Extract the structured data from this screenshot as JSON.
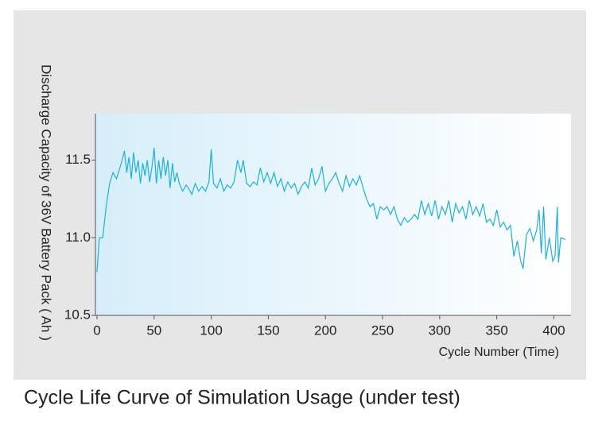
{
  "chart_data": {
    "type": "line",
    "title": "Cycle Life Curve of Simulation Usage (under test)",
    "x_label": "Cycle Number (Time)",
    "y_label": "Discharge Capacity of 36V Battery Pack ( Ah )",
    "color": "#1fb0da",
    "xlim": [
      0,
      415
    ],
    "xticks": [
      0,
      50,
      100,
      150,
      200,
      250,
      300,
      350,
      400
    ],
    "ylim": [
      10.5,
      11.8
    ],
    "yticks": [
      10.5,
      {
        "value": 11,
        "label": "11.0"
      },
      11.5
    ],
    "x": [
      0,
      2,
      5,
      8,
      11,
      14,
      17,
      20,
      22,
      24,
      26,
      28,
      30,
      32,
      34,
      36,
      38,
      40,
      42,
      44,
      46,
      48,
      50,
      52,
      54,
      56,
      58,
      60,
      62,
      64,
      66,
      68,
      70,
      72,
      75,
      78,
      80,
      83,
      86,
      89,
      92,
      95,
      98,
      100,
      102,
      105,
      108,
      111,
      114,
      117,
      120,
      123,
      126,
      128,
      131,
      134,
      137,
      140,
      143,
      146,
      149,
      152,
      155,
      158,
      161,
      164,
      167,
      170,
      173,
      176,
      179,
      182,
      185,
      188,
      191,
      194,
      197,
      200,
      203,
      206,
      209,
      212,
      215,
      218,
      221,
      224,
      227,
      230,
      233,
      236,
      239,
      242,
      245,
      248,
      251,
      254,
      257,
      260,
      263,
      266,
      269,
      272,
      275,
      278,
      281,
      284,
      287,
      290,
      293,
      296,
      299,
      302,
      305,
      308,
      311,
      314,
      317,
      320,
      323,
      326,
      329,
      332,
      335,
      338,
      341,
      344,
      347,
      350,
      353,
      356,
      359,
      362,
      365,
      368,
      371,
      373,
      376,
      379,
      382,
      385,
      387,
      389,
      391,
      393,
      396,
      399,
      401,
      403,
      404,
      406,
      410
    ],
    "values": [
      10.78,
      11.0,
      11.0,
      11.2,
      11.35,
      11.42,
      11.38,
      11.45,
      11.5,
      11.56,
      11.42,
      11.52,
      11.38,
      11.55,
      11.42,
      11.5,
      11.35,
      11.48,
      11.4,
      11.5,
      11.36,
      11.45,
      11.58,
      11.35,
      11.5,
      11.38,
      11.52,
      11.4,
      11.5,
      11.32,
      11.48,
      11.36,
      11.42,
      11.35,
      11.3,
      11.34,
      11.32,
      11.28,
      11.35,
      11.3,
      11.33,
      11.3,
      11.36,
      11.57,
      11.35,
      11.32,
      11.38,
      11.3,
      11.34,
      11.32,
      11.36,
      11.5,
      11.42,
      11.5,
      11.35,
      11.33,
      11.36,
      11.34,
      11.45,
      11.36,
      11.42,
      11.35,
      11.42,
      11.33,
      11.38,
      11.3,
      11.36,
      11.32,
      11.35,
      11.28,
      11.33,
      11.36,
      11.32,
      11.45,
      11.34,
      11.38,
      11.46,
      11.3,
      11.35,
      11.38,
      11.42,
      11.35,
      11.3,
      11.4,
      11.33,
      11.38,
      11.34,
      11.4,
      11.32,
      11.25,
      11.2,
      11.22,
      11.12,
      11.2,
      11.18,
      11.2,
      11.15,
      11.2,
      11.12,
      11.08,
      11.13,
      11.1,
      11.12,
      11.15,
      11.12,
      11.24,
      11.15,
      11.22,
      11.14,
      11.24,
      11.12,
      11.2,
      11.15,
      11.24,
      11.1,
      11.22,
      11.16,
      11.2,
      11.12,
      11.24,
      11.15,
      11.2,
      11.14,
      11.22,
      11.1,
      11.12,
      11.08,
      11.18,
      11.07,
      11.1,
      11.05,
      11.08,
      10.88,
      10.98,
      10.85,
      10.8,
      11.02,
      11.06,
      10.98,
      11.05,
      11.18,
      10.9,
      11.2,
      10.86,
      11.0,
      10.85,
      10.88,
      11.2,
      10.84,
      11.0,
      10.99
    ]
  }
}
